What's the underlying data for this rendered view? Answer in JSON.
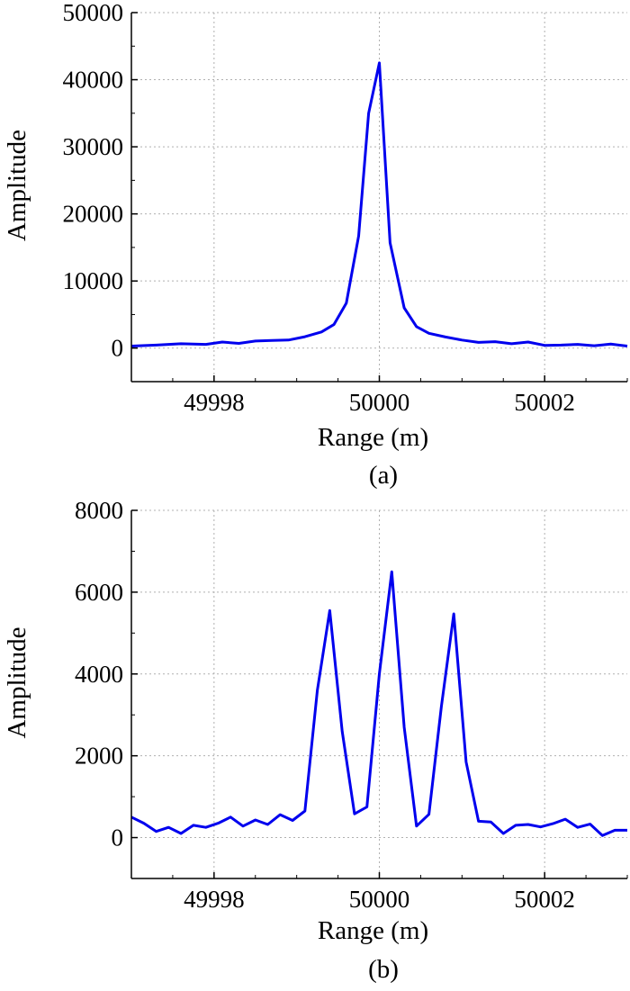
{
  "chart_data": [
    {
      "type": "line",
      "panel_label": "(a)",
      "xlabel": "Range (m)",
      "ylabel": "Amplitude",
      "xlim": [
        49997,
        50003
      ],
      "ylim": [
        -5000,
        50000
      ],
      "xticks": [
        49998,
        50000,
        50002
      ],
      "yticks": [
        0,
        10000,
        20000,
        30000,
        40000,
        50000
      ],
      "grid": true,
      "line_color": "#0000ee",
      "series": [
        {
          "x": [
            49997.0,
            49997.3,
            49997.6,
            49997.9,
            49998.1,
            49998.3,
            49998.5,
            49998.7,
            49998.9,
            49999.1,
            49999.3,
            49999.45,
            49999.6,
            49999.75,
            49999.87,
            50000.0,
            50000.13,
            50000.3,
            50000.45,
            50000.6,
            50000.8,
            50001.0,
            50001.2,
            50001.4,
            50001.6,
            50001.8,
            50002.0,
            50002.2,
            50002.4,
            50002.6,
            50002.8,
            50003.0
          ],
          "y": [
            300,
            450,
            650,
            550,
            900,
            700,
            1050,
            1150,
            1200,
            1700,
            2400,
            3500,
            6700,
            16700,
            35000,
            42500,
            15700,
            6000,
            3200,
            2200,
            1650,
            1200,
            850,
            950,
            650,
            900,
            400,
            450,
            550,
            350,
            600,
            300
          ]
        }
      ]
    },
    {
      "type": "line",
      "panel_label": "(b)",
      "xlabel": "Range (m)",
      "ylabel": "Amplitude",
      "xlim": [
        49997,
        50003
      ],
      "ylim": [
        -1000,
        8000
      ],
      "xticks": [
        49998,
        50000,
        50002
      ],
      "yticks": [
        0,
        2000,
        4000,
        6000,
        8000
      ],
      "grid": true,
      "line_color": "#0000ee",
      "series": [
        {
          "x": [
            49997.0,
            49997.15,
            49997.3,
            49997.45,
            49997.6,
            49997.75,
            49997.9,
            49998.05,
            49998.2,
            49998.35,
            49998.5,
            49998.65,
            49998.8,
            49998.95,
            49999.1,
            49999.25,
            49999.4,
            49999.55,
            49999.7,
            49999.85,
            50000.0,
            50000.15,
            50000.3,
            50000.45,
            50000.6,
            50000.75,
            50000.9,
            50001.05,
            50001.2,
            50001.35,
            50001.5,
            50001.65,
            50001.8,
            50001.95,
            50002.1,
            50002.25,
            50002.4,
            50002.55,
            50002.7,
            50002.85,
            50003.0
          ],
          "y": [
            500,
            350,
            150,
            250,
            100,
            300,
            250,
            350,
            500,
            280,
            430,
            320,
            560,
            420,
            650,
            3600,
            5550,
            2600,
            580,
            750,
            4000,
            6500,
            2700,
            280,
            570,
            3200,
            5470,
            1850,
            400,
            380,
            100,
            300,
            320,
            260,
            340,
            450,
            250,
            330,
            50,
            180,
            180
          ]
        }
      ]
    }
  ]
}
